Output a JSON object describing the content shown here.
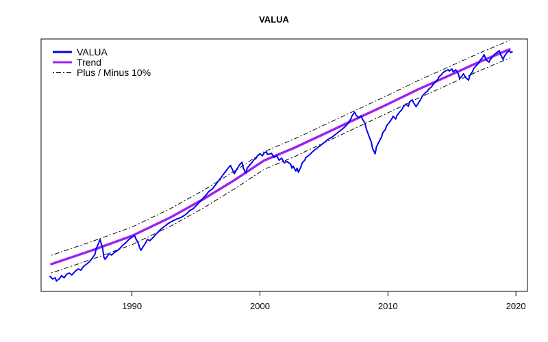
{
  "chart_data": {
    "type": "line",
    "title": "VALUA",
    "x_axis": {
      "range": [
        1982.9,
        2020.9
      ],
      "ticks": [
        {
          "value": 1990,
          "label": "1990"
        },
        {
          "value": 2000,
          "label": "2000"
        },
        {
          "value": 2010,
          "label": "2010"
        },
        {
          "value": 2020,
          "label": "2020"
        }
      ]
    },
    "y_axis": {
      "visible": false,
      "note": "no tick marks or labels in source; values normalized 0-1 of plot height"
    },
    "legend": [
      {
        "label": "VALUA",
        "color": "#0000EE",
        "style": "solid"
      },
      {
        "label": "Trend",
        "color": "#A020F0",
        "style": "solid"
      },
      {
        "label": "Plus / Minus 10%",
        "color": "#000000",
        "style": "dotdash"
      }
    ],
    "band": {
      "offset": 0.035,
      "color": "#000000",
      "style": "dotdash",
      "label": "Plus / Minus 10%"
    },
    "series": [
      {
        "name": "VALUA",
        "color": "#0000EE",
        "width": 2,
        "points": [
          [
            1983.6,
            0.06
          ],
          [
            1983.8,
            0.049
          ],
          [
            1984.0,
            0.054
          ],
          [
            1984.1,
            0.041
          ],
          [
            1984.3,
            0.049
          ],
          [
            1984.5,
            0.062
          ],
          [
            1984.7,
            0.054
          ],
          [
            1984.9,
            0.068
          ],
          [
            1985.1,
            0.073
          ],
          [
            1985.3,
            0.065
          ],
          [
            1985.6,
            0.081
          ],
          [
            1985.8,
            0.089
          ],
          [
            1986.0,
            0.084
          ],
          [
            1986.2,
            0.098
          ],
          [
            1986.4,
            0.106
          ],
          [
            1986.6,
            0.114
          ],
          [
            1986.8,
            0.125
          ],
          [
            1987.1,
            0.146
          ],
          [
            1987.2,
            0.168
          ],
          [
            1987.4,
            0.192
          ],
          [
            1987.5,
            0.206
          ],
          [
            1987.6,
            0.19
          ],
          [
            1987.7,
            0.173
          ],
          [
            1987.8,
            0.136
          ],
          [
            1987.9,
            0.127
          ],
          [
            1988.1,
            0.141
          ],
          [
            1988.2,
            0.149
          ],
          [
            1988.4,
            0.144
          ],
          [
            1988.7,
            0.157
          ],
          [
            1988.9,
            0.163
          ],
          [
            1989.1,
            0.173
          ],
          [
            1989.3,
            0.184
          ],
          [
            1989.5,
            0.192
          ],
          [
            1989.7,
            0.203
          ],
          [
            1989.9,
            0.211
          ],
          [
            1990.2,
            0.222
          ],
          [
            1990.3,
            0.209
          ],
          [
            1990.5,
            0.19
          ],
          [
            1990.6,
            0.173
          ],
          [
            1990.7,
            0.163
          ],
          [
            1990.9,
            0.179
          ],
          [
            1991.1,
            0.195
          ],
          [
            1991.2,
            0.206
          ],
          [
            1991.4,
            0.201
          ],
          [
            1991.6,
            0.211
          ],
          [
            1991.8,
            0.222
          ],
          [
            1992.0,
            0.233
          ],
          [
            1992.2,
            0.244
          ],
          [
            1992.4,
            0.252
          ],
          [
            1992.6,
            0.26
          ],
          [
            1992.8,
            0.268
          ],
          [
            1993.0,
            0.274
          ],
          [
            1993.3,
            0.282
          ],
          [
            1993.5,
            0.287
          ],
          [
            1993.7,
            0.29
          ],
          [
            1993.9,
            0.295
          ],
          [
            1994.1,
            0.301
          ],
          [
            1994.3,
            0.309
          ],
          [
            1994.5,
            0.32
          ],
          [
            1994.8,
            0.328
          ],
          [
            1995.0,
            0.339
          ],
          [
            1995.2,
            0.35
          ],
          [
            1995.4,
            0.36
          ],
          [
            1995.6,
            0.371
          ],
          [
            1995.8,
            0.382
          ],
          [
            1996.0,
            0.396
          ],
          [
            1996.3,
            0.407
          ],
          [
            1996.5,
            0.42
          ],
          [
            1996.7,
            0.434
          ],
          [
            1996.9,
            0.447
          ],
          [
            1997.1,
            0.461
          ],
          [
            1997.3,
            0.474
          ],
          [
            1997.5,
            0.488
          ],
          [
            1997.7,
            0.499
          ],
          [
            1997.9,
            0.477
          ],
          [
            1998.0,
            0.466
          ],
          [
            1998.2,
            0.485
          ],
          [
            1998.4,
            0.501
          ],
          [
            1998.6,
            0.512
          ],
          [
            1998.7,
            0.488
          ],
          [
            1998.9,
            0.469
          ],
          [
            1999.0,
            0.488
          ],
          [
            1999.2,
            0.501
          ],
          [
            1999.4,
            0.512
          ],
          [
            1999.5,
            0.52
          ],
          [
            1999.7,
            0.528
          ],
          [
            1999.8,
            0.537
          ],
          [
            2000.0,
            0.545
          ],
          [
            2000.2,
            0.537
          ],
          [
            2000.3,
            0.547
          ],
          [
            2000.5,
            0.553
          ],
          [
            2000.6,
            0.542
          ],
          [
            2000.9,
            0.547
          ],
          [
            2001.1,
            0.531
          ],
          [
            2001.3,
            0.537
          ],
          [
            2001.5,
            0.52
          ],
          [
            2001.7,
            0.528
          ],
          [
            2001.9,
            0.509
          ],
          [
            2002.1,
            0.515
          ],
          [
            2002.4,
            0.504
          ],
          [
            2002.5,
            0.488
          ],
          [
            2002.6,
            0.496
          ],
          [
            2002.8,
            0.477
          ],
          [
            2002.9,
            0.488
          ],
          [
            2003.0,
            0.472
          ],
          [
            2003.2,
            0.493
          ],
          [
            2003.3,
            0.509
          ],
          [
            2003.5,
            0.52
          ],
          [
            2003.6,
            0.531
          ],
          [
            2003.9,
            0.542
          ],
          [
            2004.1,
            0.553
          ],
          [
            2004.3,
            0.561
          ],
          [
            2004.5,
            0.569
          ],
          [
            2004.7,
            0.577
          ],
          [
            2004.9,
            0.585
          ],
          [
            2005.1,
            0.593
          ],
          [
            2005.3,
            0.602
          ],
          [
            2005.6,
            0.61
          ],
          [
            2005.8,
            0.618
          ],
          [
            2006.0,
            0.626
          ],
          [
            2006.2,
            0.634
          ],
          [
            2006.4,
            0.642
          ],
          [
            2006.6,
            0.65
          ],
          [
            2006.8,
            0.661
          ],
          [
            2007.1,
            0.683
          ],
          [
            2007.2,
            0.696
          ],
          [
            2007.4,
            0.71
          ],
          [
            2007.5,
            0.699
          ],
          [
            2007.7,
            0.688
          ],
          [
            2007.9,
            0.696
          ],
          [
            2008.0,
            0.683
          ],
          [
            2008.2,
            0.667
          ],
          [
            2008.3,
            0.645
          ],
          [
            2008.5,
            0.618
          ],
          [
            2008.7,
            0.591
          ],
          [
            2008.8,
            0.566
          ],
          [
            2009.0,
            0.545
          ],
          [
            2009.1,
            0.572
          ],
          [
            2009.3,
            0.593
          ],
          [
            2009.5,
            0.612
          ],
          [
            2009.6,
            0.629
          ],
          [
            2009.8,
            0.642
          ],
          [
            2009.9,
            0.656
          ],
          [
            2010.1,
            0.669
          ],
          [
            2010.3,
            0.683
          ],
          [
            2010.4,
            0.694
          ],
          [
            2010.6,
            0.683
          ],
          [
            2010.7,
            0.696
          ],
          [
            2010.9,
            0.71
          ],
          [
            2011.1,
            0.721
          ],
          [
            2011.2,
            0.732
          ],
          [
            2011.4,
            0.742
          ],
          [
            2011.6,
            0.734
          ],
          [
            2011.7,
            0.751
          ],
          [
            2011.9,
            0.759
          ],
          [
            2012.0,
            0.748
          ],
          [
            2012.2,
            0.732
          ],
          [
            2012.4,
            0.748
          ],
          [
            2012.6,
            0.764
          ],
          [
            2012.7,
            0.775
          ],
          [
            2012.9,
            0.786
          ],
          [
            2013.1,
            0.794
          ],
          [
            2013.2,
            0.802
          ],
          [
            2013.4,
            0.81
          ],
          [
            2013.5,
            0.818
          ],
          [
            2013.7,
            0.829
          ],
          [
            2013.9,
            0.84
          ],
          [
            2014.0,
            0.851
          ],
          [
            2014.2,
            0.859
          ],
          [
            2014.3,
            0.867
          ],
          [
            2014.5,
            0.873
          ],
          [
            2014.7,
            0.878
          ],
          [
            2014.8,
            0.873
          ],
          [
            2015.0,
            0.881
          ],
          [
            2015.1,
            0.87
          ],
          [
            2015.3,
            0.878
          ],
          [
            2015.5,
            0.862
          ],
          [
            2015.6,
            0.843
          ],
          [
            2015.8,
            0.854
          ],
          [
            2015.9,
            0.862
          ],
          [
            2016.1,
            0.846
          ],
          [
            2016.3,
            0.837
          ],
          [
            2016.4,
            0.856
          ],
          [
            2016.6,
            0.87
          ],
          [
            2016.7,
            0.883
          ],
          [
            2016.9,
            0.894
          ],
          [
            2017.1,
            0.905
          ],
          [
            2017.2,
            0.916
          ],
          [
            2017.4,
            0.927
          ],
          [
            2017.5,
            0.938
          ],
          [
            2017.7,
            0.916
          ],
          [
            2017.9,
            0.908
          ],
          [
            2018.0,
            0.919
          ],
          [
            2018.2,
            0.93
          ],
          [
            2018.3,
            0.938
          ],
          [
            2018.5,
            0.946
          ],
          [
            2018.7,
            0.954
          ],
          [
            2018.8,
            0.938
          ],
          [
            2019.0,
            0.919
          ],
          [
            2019.1,
            0.932
          ],
          [
            2019.3,
            0.946
          ],
          [
            2019.5,
            0.954
          ],
          [
            2019.6,
            0.946
          ],
          [
            2019.7,
            0.949
          ]
        ]
      },
      {
        "name": "Trend",
        "color": "#A020F0",
        "width": 3.5,
        "points": [
          [
            1983.7,
            0.108
          ],
          [
            1986.9,
            0.163
          ],
          [
            1990.0,
            0.22
          ],
          [
            1993.0,
            0.293
          ],
          [
            1995.7,
            0.369
          ],
          [
            1998.1,
            0.444
          ],
          [
            2000.3,
            0.518
          ],
          [
            2002.7,
            0.569
          ],
          [
            2005.1,
            0.626
          ],
          [
            2007.5,
            0.683
          ],
          [
            2010.0,
            0.742
          ],
          [
            2012.3,
            0.799
          ],
          [
            2014.6,
            0.851
          ],
          [
            2017.1,
            0.908
          ],
          [
            2019.5,
            0.959
          ]
        ]
      }
    ]
  },
  "colors": {
    "background": "#FFFFFF",
    "frame": "#000000",
    "tick": "#000000"
  }
}
